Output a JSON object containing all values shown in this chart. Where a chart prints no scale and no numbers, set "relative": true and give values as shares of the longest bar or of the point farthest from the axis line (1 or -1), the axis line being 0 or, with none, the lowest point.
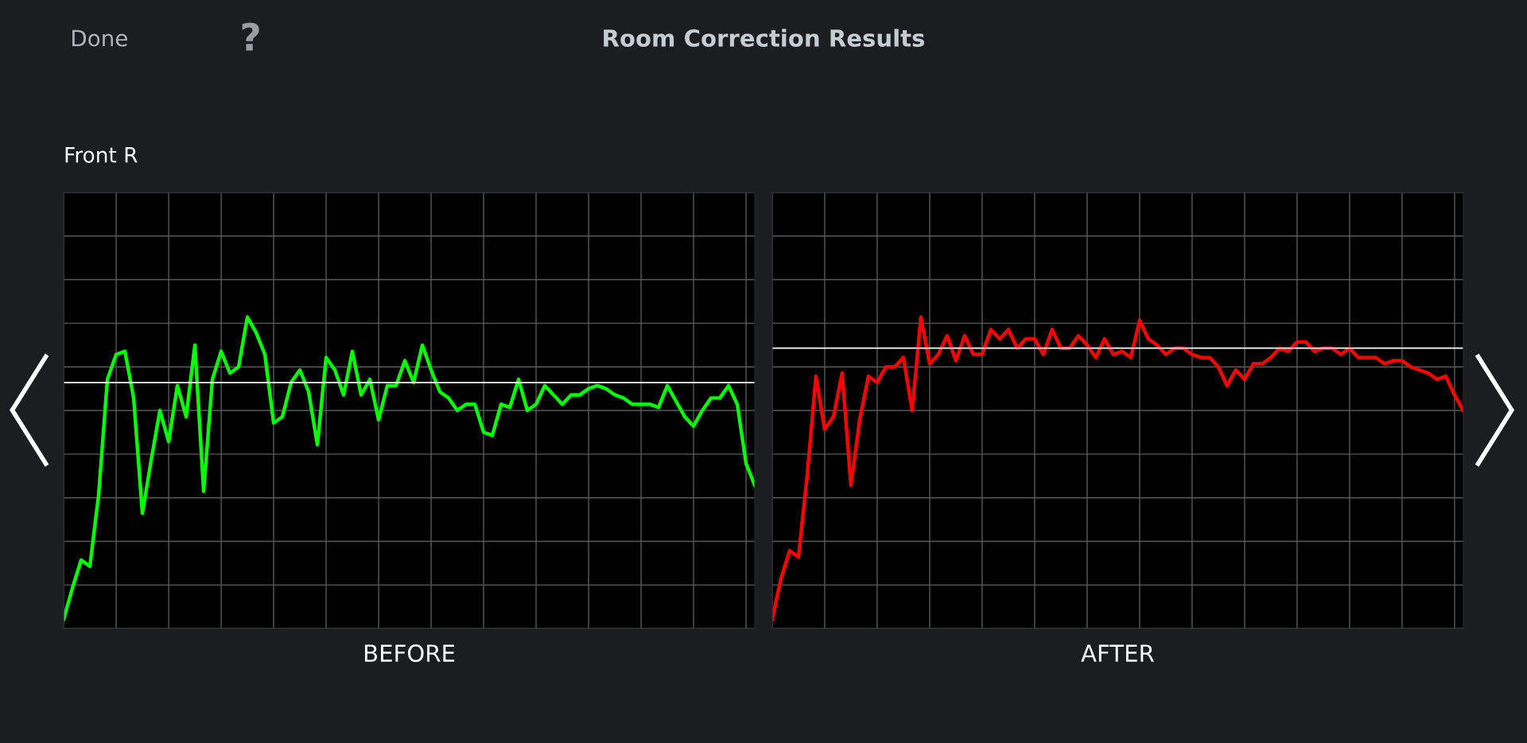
{
  "chart_data": [
    {
      "type": "line",
      "title": "Room Correction Results",
      "subtitle": "Front R",
      "xlabel": "BEFORE",
      "annotations": [
        "Done",
        "?"
      ],
      "relative": true,
      "grid": true,
      "tick_labels": false,
      "categories": [
        null,
        null,
        null,
        null,
        null,
        null,
        null,
        null,
        null,
        null,
        null,
        null,
        null,
        null,
        null,
        null,
        null,
        null,
        null,
        null,
        null,
        null,
        null,
        null,
        null,
        null,
        null,
        null,
        null,
        null,
        null,
        null,
        null,
        null,
        null,
        null,
        null,
        null,
        null,
        null,
        null,
        null,
        null,
        null,
        null,
        null,
        null,
        null,
        null,
        null,
        null,
        null,
        null,
        null,
        null,
        null,
        null,
        null,
        null,
        null,
        null,
        null,
        null,
        null,
        null,
        null,
        null,
        null,
        null,
        null,
        null,
        null,
        null,
        null,
        null,
        null,
        null,
        null,
        null,
        null
      ],
      "ref_lines": [
        {
          "axis": "y",
          "value": 0.79,
          "color": "#ffffff"
        }
      ],
      "series": [
        {
          "color": "#00ff00",
          "values": [
            0.03,
            0.13,
            0.22,
            0.2,
            0.43,
            0.8,
            0.88,
            0.89,
            0.74,
            0.37,
            0.54,
            0.7,
            0.6,
            0.78,
            0.68,
            0.91,
            0.44,
            0.8,
            0.89,
            0.82,
            0.84,
            1,
            0.95,
            0.88,
            0.66,
            0.68,
            0.79,
            0.83,
            0.76,
            0.59,
            0.87,
            0.83,
            0.75,
            0.89,
            0.75,
            0.8,
            0.67,
            0.78,
            0.78,
            0.86,
            0.79,
            0.91,
            0.83,
            0.76,
            0.74,
            0.7,
            0.72,
            0.72,
            0.63,
            0.62,
            0.72,
            0.71,
            0.8,
            0.7,
            0.72,
            0.78,
            0.75,
            0.72,
            0.75,
            0.75,
            0.77,
            0.78,
            0.77,
            0.75,
            0.74,
            0.72,
            0.72,
            0.72,
            0.71,
            0.78,
            0.73,
            0.68,
            0.65,
            0.7,
            0.74,
            0.74,
            0.78,
            0.72,
            0.53,
            0.46
          ]
        }
      ]
    },
    {
      "type": "line",
      "xlabel": "AFTER",
      "relative": true,
      "grid": true,
      "tick_labels": false,
      "categories": [
        null,
        null,
        null,
        null,
        null,
        null,
        null,
        null,
        null,
        null,
        null,
        null,
        null,
        null,
        null,
        null,
        null,
        null,
        null,
        null,
        null,
        null,
        null,
        null,
        null,
        null,
        null,
        null,
        null,
        null,
        null,
        null,
        null,
        null,
        null,
        null,
        null,
        null,
        null,
        null,
        null,
        null,
        null,
        null,
        null,
        null,
        null,
        null,
        null,
        null,
        null,
        null,
        null,
        null,
        null,
        null,
        null,
        null,
        null,
        null,
        null,
        null,
        null,
        null,
        null,
        null,
        null,
        null,
        null,
        null,
        null,
        null,
        null,
        null,
        null,
        null,
        null,
        null,
        null,
        null
      ],
      "ref_lines": [
        {
          "axis": "y",
          "value": 0.9,
          "color": "#ffffff"
        }
      ],
      "series": [
        {
          "color": "#ff0000",
          "values": [
            0.03,
            0.16,
            0.25,
            0.23,
            0.49,
            0.81,
            0.64,
            0.68,
            0.82,
            0.46,
            0.67,
            0.81,
            0.79,
            0.84,
            0.84,
            0.87,
            0.7,
            1,
            0.85,
            0.88,
            0.94,
            0.86,
            0.94,
            0.88,
            0.88,
            0.96,
            0.93,
            0.96,
            0.9,
            0.93,
            0.93,
            0.88,
            0.96,
            0.9,
            0.9,
            0.94,
            0.91,
            0.87,
            0.93,
            0.88,
            0.89,
            0.87,
            0.99,
            0.93,
            0.91,
            0.88,
            0.9,
            0.9,
            0.88,
            0.87,
            0.87,
            0.84,
            0.78,
            0.83,
            0.8,
            0.85,
            0.85,
            0.87,
            0.9,
            0.89,
            0.92,
            0.92,
            0.89,
            0.9,
            0.9,
            0.88,
            0.9,
            0.87,
            0.87,
            0.87,
            0.85,
            0.86,
            0.86,
            0.84,
            0.83,
            0.82,
            0.8,
            0.81,
            0.75,
            0.7
          ]
        }
      ]
    }
  ]
}
